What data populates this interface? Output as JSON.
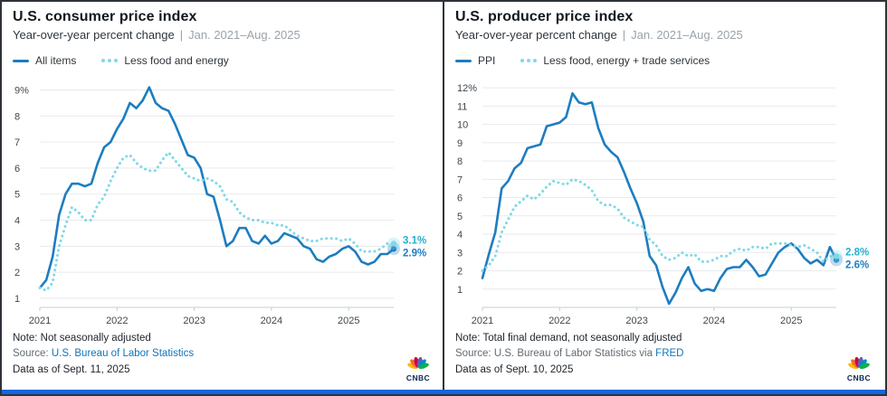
{
  "brand": {
    "logo_text": "CNBC"
  },
  "colors": {
    "panel_border": "#2E3338",
    "bottom_bar": "#1566E0",
    "grid": "#E9EAEC",
    "axis_line": "#C9CDD1",
    "axis_label": "#40474D",
    "title": "#12181E",
    "subtitle": "#2E353B",
    "subtitle_muted": "#9AA2A9",
    "note": "#1E242B",
    "source_text": "#636B72",
    "link": "#0F75BC"
  },
  "panels": [
    {
      "title": "U.S. consumer price index",
      "subtitle": "Year-over-year percent change",
      "subtitle_separator": "|",
      "date_range": "Jan. 2021–Aug. 2025",
      "note": "Note: Not seasonally adjusted",
      "source": {
        "prefix": "Source: ",
        "link": "U.S. Bureau of Labor Statistics",
        "suffix": ""
      },
      "data_as_of": "Data as of Sept. 11, 2025"
    },
    {
      "title": "U.S. producer price index",
      "subtitle": "Year-over-year percent change",
      "subtitle_separator": "|",
      "date_range": "Jan. 2021–Aug. 2025",
      "note": "Note: Total final demand, not seasonally adjusted",
      "source": {
        "prefix": "Source: U.S. Bureau of Labor Statistics via ",
        "link": "FRED",
        "suffix": ""
      },
      "data_as_of": "Data as of Sept. 10, 2025"
    }
  ],
  "chart_data": [
    {
      "type": "line",
      "title": "U.S. consumer price index",
      "subtitle": "Year-over-year percent change",
      "period": "Jan. 2021–Aug. 2025",
      "x_unit": "month",
      "x_tick_labels": [
        "2021",
        "2022",
        "2023",
        "2024",
        "2025"
      ],
      "x_tick_positions": [
        0,
        12,
        24,
        36,
        48
      ],
      "y_ticks": [
        1,
        2,
        3,
        4,
        5,
        6,
        7,
        8,
        9
      ],
      "y_top_suffix": "%",
      "ylim": [
        0.65,
        9.4
      ],
      "grid": "horizontal",
      "legend_position": "top-left",
      "series": [
        {
          "name": "All items",
          "style": "solid",
          "color": "#1D7DC0",
          "label_color": "#1D7DC0",
          "end_label": "2.9%",
          "values": [
            1.4,
            1.7,
            2.6,
            4.2,
            5.0,
            5.4,
            5.4,
            5.3,
            5.4,
            6.2,
            6.8,
            7.0,
            7.5,
            7.9,
            8.5,
            8.3,
            8.6,
            9.1,
            8.5,
            8.3,
            8.2,
            7.7,
            7.1,
            6.5,
            6.4,
            6.0,
            5.0,
            4.9,
            4.0,
            3.0,
            3.2,
            3.7,
            3.7,
            3.2,
            3.1,
            3.4,
            3.1,
            3.2,
            3.5,
            3.4,
            3.3,
            3.0,
            2.9,
            2.5,
            2.4,
            2.6,
            2.7,
            2.9,
            3.0,
            2.8,
            2.4,
            2.3,
            2.4,
            2.7,
            2.7,
            2.9
          ]
        },
        {
          "name": "Less food and energy",
          "style": "dotted",
          "color": "#7FD9E8",
          "label_color": "#26AFCB",
          "end_label": "3.1%",
          "values": [
            1.4,
            1.3,
            1.6,
            3.0,
            3.8,
            4.5,
            4.3,
            4.0,
            4.0,
            4.6,
            4.9,
            5.5,
            6.0,
            6.4,
            6.5,
            6.2,
            6.0,
            5.9,
            5.9,
            6.3,
            6.6,
            6.3,
            6.0,
            5.7,
            5.6,
            5.5,
            5.6,
            5.5,
            5.3,
            4.8,
            4.7,
            4.3,
            4.1,
            4.0,
            4.0,
            3.9,
            3.9,
            3.8,
            3.8,
            3.6,
            3.4,
            3.3,
            3.2,
            3.2,
            3.3,
            3.3,
            3.3,
            3.2,
            3.3,
            3.1,
            2.8,
            2.8,
            2.8,
            2.9,
            3.1,
            3.1
          ]
        }
      ]
    },
    {
      "type": "line",
      "title": "U.S. producer price index",
      "subtitle": "Year-over-year percent change",
      "period": "Jan. 2021–Aug. 2025",
      "x_unit": "month",
      "x_tick_labels": [
        "2021",
        "2022",
        "2023",
        "2024",
        "2025"
      ],
      "x_tick_positions": [
        0,
        12,
        24,
        36,
        48
      ],
      "y_ticks": [
        1,
        2,
        3,
        4,
        5,
        6,
        7,
        8,
        9,
        10,
        11,
        12
      ],
      "y_top_suffix": "%",
      "ylim": [
        0,
        12.45
      ],
      "grid": "horizontal",
      "legend_position": "top-left",
      "series": [
        {
          "name": "PPI",
          "style": "solid",
          "color": "#1D7DC0",
          "label_color": "#1D7DC0",
          "end_label": "2.6%",
          "values": [
            1.6,
            2.9,
            4.1,
            6.5,
            6.9,
            7.6,
            7.9,
            8.7,
            8.8,
            8.9,
            9.9,
            10.0,
            10.1,
            10.4,
            11.7,
            11.2,
            11.1,
            11.2,
            9.8,
            8.9,
            8.5,
            8.2,
            7.4,
            6.5,
            5.7,
            4.7,
            2.8,
            2.3,
            1.1,
            0.2,
            0.8,
            1.6,
            2.2,
            1.3,
            0.9,
            1.0,
            0.9,
            1.6,
            2.1,
            2.2,
            2.2,
            2.6,
            2.2,
            1.7,
            1.8,
            2.4,
            3.0,
            3.3,
            3.5,
            3.2,
            2.7,
            2.4,
            2.6,
            2.3,
            3.3,
            2.6
          ]
        },
        {
          "name": "Less food, energy + trade services",
          "style": "dotted",
          "color": "#7FD9E8",
          "label_color": "#26AFCB",
          "end_label": "2.8%",
          "values": [
            2.0,
            2.3,
            2.8,
            4.1,
            4.8,
            5.5,
            5.8,
            6.1,
            5.9,
            6.2,
            6.6,
            6.9,
            6.8,
            6.7,
            7.0,
            6.9,
            6.7,
            6.4,
            5.8,
            5.6,
            5.6,
            5.4,
            4.9,
            4.7,
            4.5,
            4.4,
            3.7,
            3.4,
            2.8,
            2.6,
            2.7,
            3.0,
            2.8,
            2.9,
            2.5,
            2.5,
            2.6,
            2.8,
            2.8,
            3.1,
            3.2,
            3.1,
            3.3,
            3.3,
            3.2,
            3.5,
            3.5,
            3.5,
            3.4,
            3.3,
            3.4,
            3.2,
            3.0,
            2.5,
            2.8,
            2.8
          ]
        }
      ]
    }
  ]
}
